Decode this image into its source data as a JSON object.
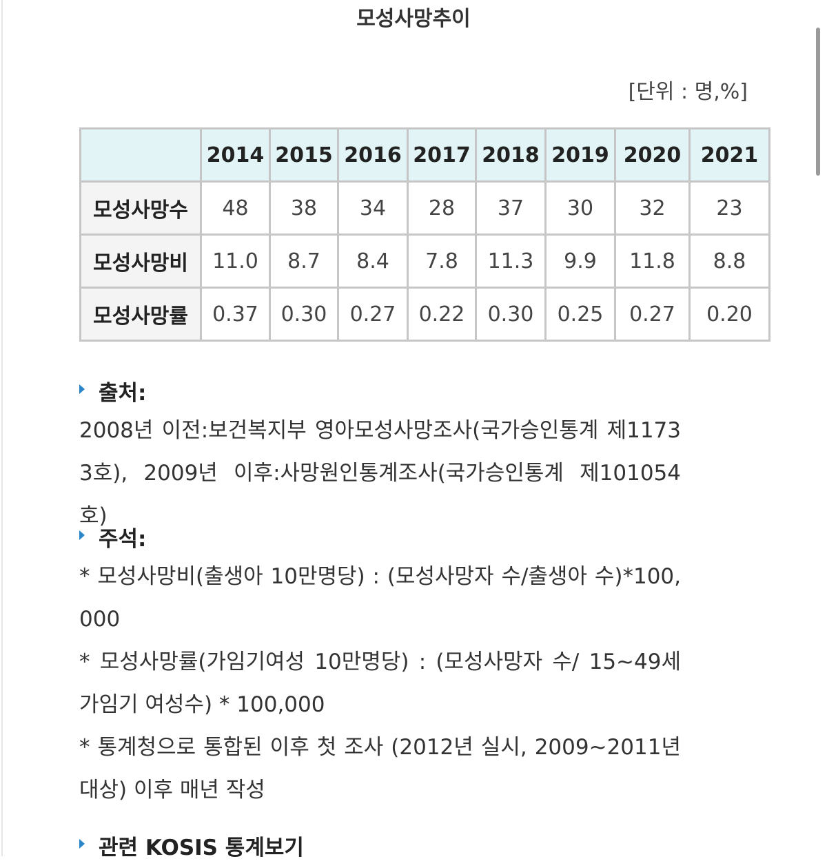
{
  "title": "모성사망추이",
  "unit": "[단위 : 명,%]",
  "table": {
    "columns": [
      "2014",
      "2015",
      "2016",
      "2017",
      "2018",
      "2019",
      "2020",
      "2021"
    ],
    "rows": [
      {
        "label": "모성사망수",
        "values": [
          "48",
          "38",
          "34",
          "28",
          "37",
          "30",
          "32",
          "23"
        ]
      },
      {
        "label": "모성사망비",
        "values": [
          "11.0",
          "8.7",
          "8.4",
          "7.8",
          "11.3",
          "9.9",
          "11.8",
          "8.8"
        ]
      },
      {
        "label": "모성사망률",
        "values": [
          "0.37",
          "0.30",
          "0.27",
          "0.22",
          "0.30",
          "0.25",
          "0.27",
          "0.20"
        ]
      }
    ]
  },
  "source": {
    "heading": "출처:",
    "text": "2008년 이전:보건복지부 영아모성사망조사(국가승인통계 제11733호), 2009년 이후:사망원인통계조사(국가승인통계 제101054호)"
  },
  "notes": {
    "heading": "주석:",
    "items": [
      "* 모성사망비(출생아 10만명당) : (모성사망자 수/출생아 수)*100,000",
      "* 모성사망률(가임기여성 10만명당) : (모성사망자 수/ 15~49세 가임기 여성수) * 100,000",
      "* 통계청으로 통합된 이후 첫 조사 (2012년 실시, 2009~2011년 대상) 이후 매년 작성"
    ]
  },
  "related": {
    "heading": "관련 KOSIS 통계보기"
  }
}
